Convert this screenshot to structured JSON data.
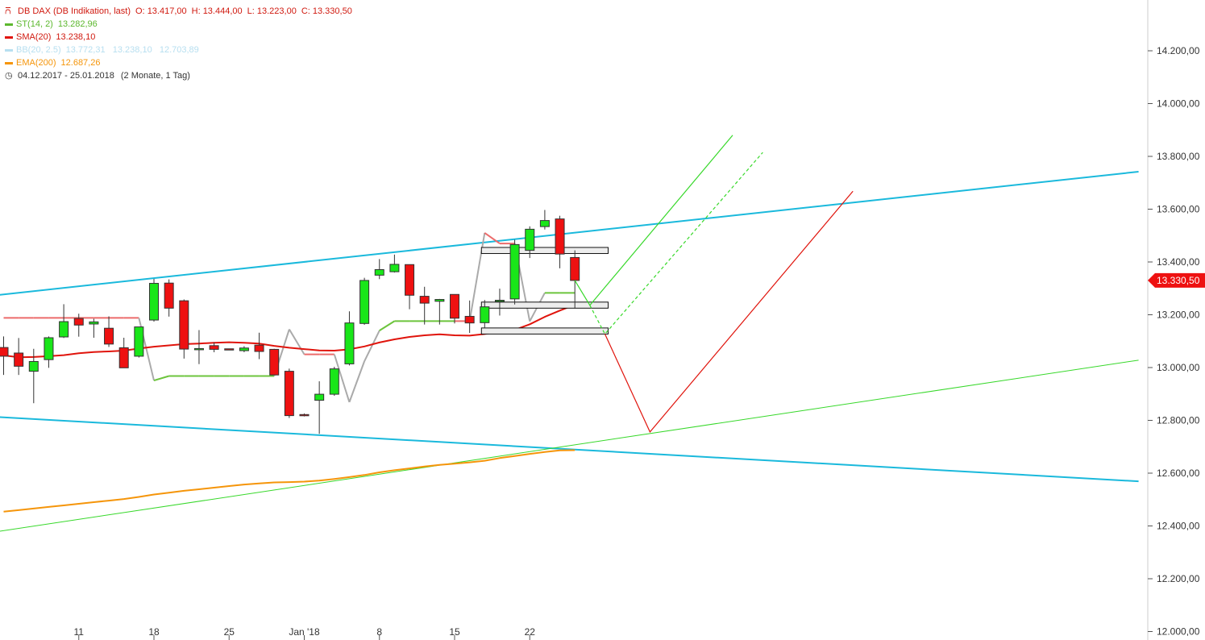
{
  "header": {
    "instrument": "DB DAX (DB Indikation, last)",
    "ohlc": [
      {
        "label": "O:",
        "value": "13.417,00"
      },
      {
        "label": "H:",
        "value": "13.444,00"
      },
      {
        "label": "L:",
        "value": "13.223,00"
      },
      {
        "label": "C:",
        "value": "13.330,50"
      }
    ]
  },
  "legend": [
    {
      "label": "ST(14, 2)",
      "values": "13.282,96",
      "color": "#5cb82e"
    },
    {
      "label": "SMA(20)",
      "values": "13.238,10",
      "color": "#e0140c"
    },
    {
      "label": "BB(20, 2.5)",
      "values": "13.772,31   13.238,10   12.703,89",
      "color": "#b7dff0"
    },
    {
      "label": "EMA(200)",
      "values": "12.687,26",
      "color": "#f5950a"
    }
  ],
  "range": {
    "dates": "04.12.2017 - 25.01.2018",
    "period": "(2 Monate, 1 Tag)"
  },
  "last_price_label": "13.330,50",
  "colors": {
    "up": "#19e619",
    "down": "#ee1111",
    "channel": "#1ab9dc",
    "st": "#5cb82e",
    "sma": "#e0140c",
    "ema": "#f5950a",
    "text": "#333333"
  },
  "chart_data": {
    "type": "candlestick",
    "y_axis": {
      "ticks": [
        12000,
        12200,
        12400,
        12600,
        12800,
        13000,
        13200,
        13400,
        13600,
        13800,
        14000,
        14200
      ],
      "tick_labels": [
        "12.000,00",
        "12.200,00",
        "12.400,00",
        "12.600,00",
        "12.800,00",
        "13.000,00",
        "13.200,00",
        "13.400,00",
        "13.600,00",
        "13.800,00",
        "14.000,00",
        "14.200,00"
      ],
      "ylim": [
        12000,
        14400
      ],
      "position": "right"
    },
    "x_axis": {
      "tick_labels": [
        {
          "bar": 5,
          "label": "11"
        },
        {
          "bar": 10,
          "label": "18"
        },
        {
          "bar": 15,
          "label": "25"
        },
        {
          "bar": 20,
          "label": "Jan '18"
        },
        {
          "bar": 25,
          "label": "8"
        },
        {
          "bar": 30,
          "label": "15"
        },
        {
          "bar": 35,
          "label": "22"
        }
      ]
    },
    "candles": [
      {
        "o": 13076,
        "h": 13118,
        "l": 12972,
        "c": 13043
      },
      {
        "o": 13055,
        "h": 13112,
        "l": 12972,
        "c": 13005
      },
      {
        "o": 12986,
        "h": 13071,
        "l": 12865,
        "c": 13023
      },
      {
        "o": 13030,
        "h": 13118,
        "l": 12999,
        "c": 13113
      },
      {
        "o": 13116,
        "h": 13240,
        "l": 13112,
        "c": 13174
      },
      {
        "o": 13186,
        "h": 13204,
        "l": 13117,
        "c": 13161
      },
      {
        "o": 13165,
        "h": 13185,
        "l": 13113,
        "c": 13173
      },
      {
        "o": 13149,
        "h": 13194,
        "l": 13078,
        "c": 13089
      },
      {
        "o": 13075,
        "h": 13113,
        "l": 12999,
        "c": 12999
      },
      {
        "o": 13043,
        "h": 13151,
        "l": 13038,
        "c": 13154
      },
      {
        "o": 13180,
        "h": 13336,
        "l": 13174,
        "c": 13319
      },
      {
        "o": 13320,
        "h": 13334,
        "l": 13193,
        "c": 13225
      },
      {
        "o": 13253,
        "h": 13258,
        "l": 13034,
        "c": 13070
      },
      {
        "o": 13070,
        "h": 13142,
        "l": 13013,
        "c": 13072
      },
      {
        "o": 13083,
        "h": 13095,
        "l": 13058,
        "c": 13069
      },
      {
        "o": 13071,
        "h": 13071,
        "l": 13071,
        "c": 13070
      },
      {
        "o": 13064,
        "h": 13081,
        "l": 13058,
        "c": 13074
      },
      {
        "o": 13085,
        "h": 13132,
        "l": 13032,
        "c": 13061
      },
      {
        "o": 13069,
        "h": 13071,
        "l": 12972,
        "c": 12972
      },
      {
        "o": 12986,
        "h": 12996,
        "l": 12809,
        "c": 12818
      },
      {
        "o": 12822,
        "h": 12826,
        "l": 12815,
        "c": 12818
      },
      {
        "o": 12876,
        "h": 12948,
        "l": 12749,
        "c": 12899
      },
      {
        "o": 12899,
        "h": 13003,
        "l": 12893,
        "c": 12995
      },
      {
        "o": 13014,
        "h": 13213,
        "l": 13008,
        "c": 13169
      },
      {
        "o": 13167,
        "h": 13340,
        "l": 13162,
        "c": 13330
      },
      {
        "o": 13350,
        "h": 13411,
        "l": 13335,
        "c": 13371
      },
      {
        "o": 13363,
        "h": 13428,
        "l": 13360,
        "c": 13391
      },
      {
        "o": 13390,
        "h": 13391,
        "l": 13221,
        "c": 13274
      },
      {
        "o": 13270,
        "h": 13306,
        "l": 13163,
        "c": 13244
      },
      {
        "o": 13251,
        "h": 13260,
        "l": 13163,
        "c": 13258
      },
      {
        "o": 13277,
        "h": 13277,
        "l": 13167,
        "c": 13187
      },
      {
        "o": 13194,
        "h": 13254,
        "l": 13131,
        "c": 13169
      },
      {
        "o": 13170,
        "h": 13256,
        "l": 13150,
        "c": 13230
      },
      {
        "o": 13253,
        "h": 13299,
        "l": 13197,
        "c": 13255
      },
      {
        "o": 13260,
        "h": 13484,
        "l": 13239,
        "c": 13466
      },
      {
        "o": 13444,
        "h": 13535,
        "l": 13415,
        "c": 13524
      },
      {
        "o": 13534,
        "h": 13597,
        "l": 13523,
        "c": 13557
      },
      {
        "o": 13563,
        "h": 13575,
        "l": 13376,
        "c": 13430
      },
      {
        "o": 13417,
        "h": 13444,
        "l": 13223,
        "c": 13330
      }
    ],
    "sma20": [
      13046,
      13039,
      13040,
      13043,
      13047,
      13054,
      13059,
      13061,
      13064,
      13072,
      13079,
      13084,
      13089,
      13091,
      13094,
      13096,
      13094,
      13091,
      13082,
      13075,
      13070,
      13065,
      13064,
      13069,
      13080,
      13095,
      13107,
      13116,
      13122,
      13126,
      13122,
      13121,
      13127,
      13136,
      13143,
      13164,
      13192,
      13216,
      13238
    ],
    "st14": [
      13188,
      13188,
      13188,
      13188,
      13188,
      13188,
      13188,
      13188,
      13188,
      13188,
      12951,
      12968,
      12968,
      12968,
      12968,
      12968,
      12968,
      12968,
      12968,
      13145,
      13050,
      13050,
      13050,
      12869,
      13024,
      13140,
      13176,
      13176,
      13176,
      13176,
      13176,
      13176,
      13510,
      13470,
      13470,
      13175,
      13283,
      13283,
      13283
    ],
    "ema200": [
      12454,
      12460,
      12466,
      12472,
      12478,
      12484,
      12490,
      12496,
      12502,
      12510,
      12519,
      12526,
      12533,
      12539,
      12545,
      12551,
      12557,
      12561,
      12565,
      12566,
      12568,
      12572,
      12578,
      12585,
      12593,
      12603,
      12611,
      12618,
      12625,
      12631,
      12636,
      12641,
      12647,
      12657,
      12665,
      12673,
      12680,
      12686,
      12687
    ],
    "boxes": [
      {
        "from_bar": 32,
        "to_bar": 40,
        "low": 13127,
        "high": 13150
      },
      {
        "from_bar": 32,
        "to_bar": 40,
        "low": 13225,
        "high": 13248
      },
      {
        "from_bar": 32,
        "to_bar": 40,
        "low": 13432,
        "high": 13455
      }
    ],
    "lines": [
      {
        "x1": -0.5,
        "y1": 13274,
        "x2": 75.5,
        "y2": 13742,
        "color": "#1ab9dc",
        "width": 2
      },
      {
        "x1": -0.5,
        "y1": 12813,
        "x2": 75.5,
        "y2": 12569,
        "color": "#1ab9dc",
        "width": 2
      },
      {
        "x1": -0.5,
        "y1": 12378,
        "x2": 75.5,
        "y2": 13028,
        "color": "#37d82a",
        "width": 1
      }
    ],
    "projections": [
      {
        "points": [
          [
            38,
            13330
          ],
          [
            39,
            13236
          ],
          [
            48.5,
            13880
          ]
        ],
        "color": "#37d82a",
        "dash": false
      },
      {
        "points": [
          [
            39,
            13236
          ],
          [
            40,
            13127
          ],
          [
            50.5,
            13815
          ]
        ],
        "color": "#37d82a",
        "dash": true
      },
      {
        "points": [
          [
            40,
            13127
          ],
          [
            43,
            12756
          ],
          [
            56.5,
            13668
          ]
        ],
        "color": "#e0140c",
        "dash": false
      }
    ]
  }
}
